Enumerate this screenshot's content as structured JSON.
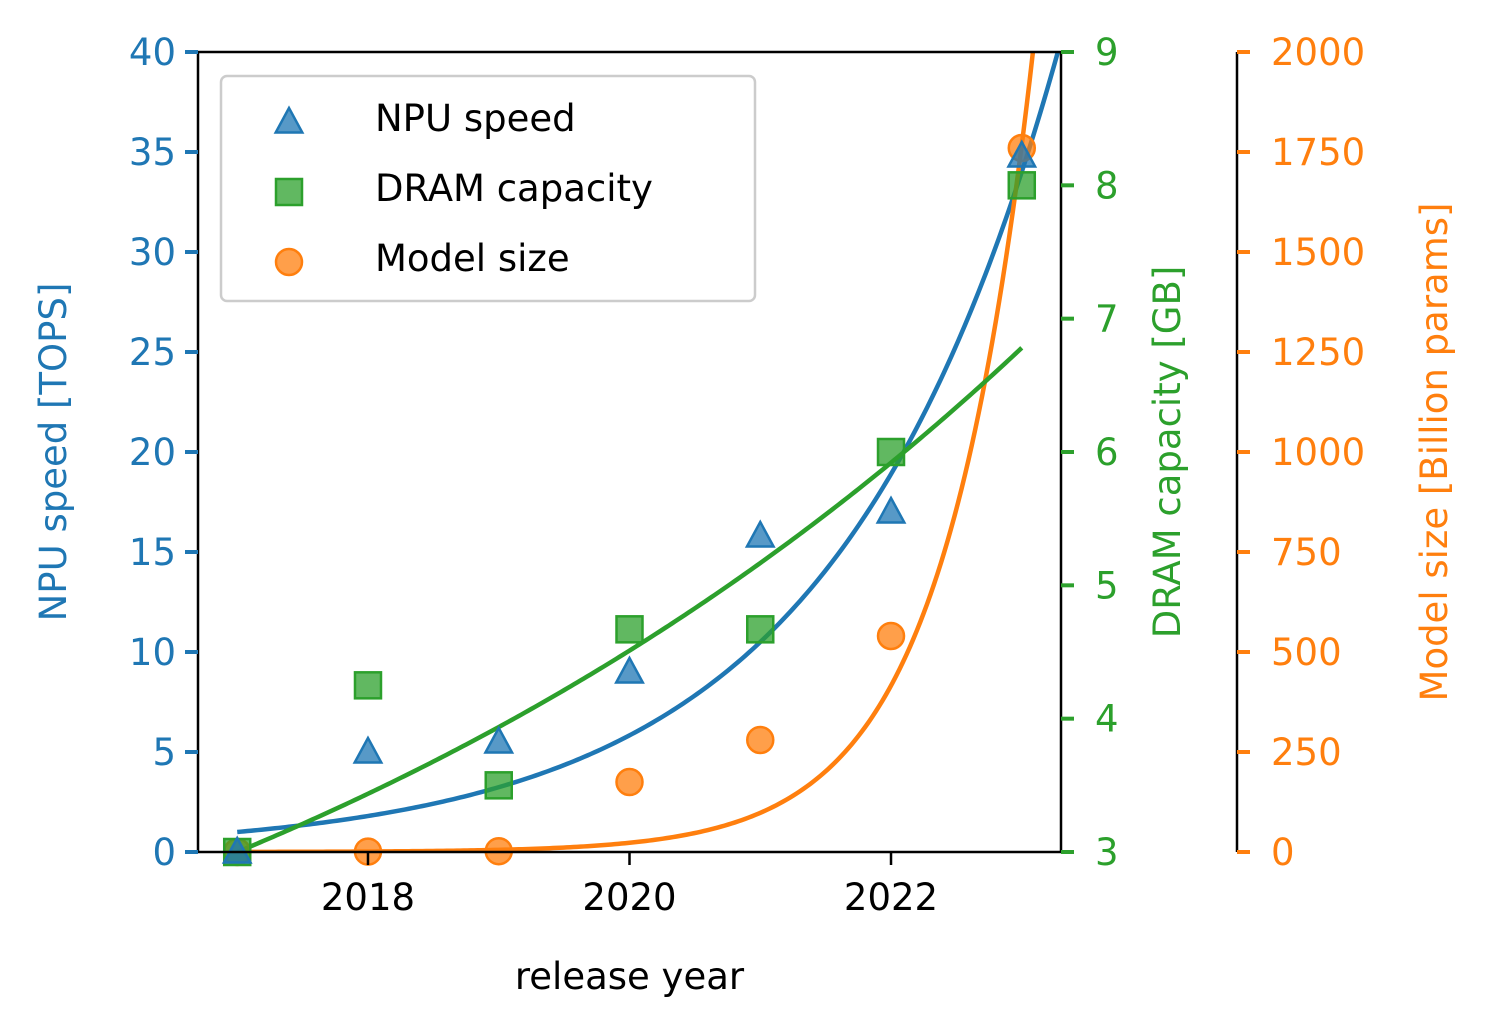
{
  "colors": {
    "npu": "#1f77b4",
    "dram": "#2ca02c",
    "model": "#ff7f0e",
    "axis": "#000000",
    "legend_border": "#cccccc"
  },
  "chart_data": {
    "type": "scatter",
    "title": "",
    "xlabel": "release year",
    "xlim": [
      2016.7,
      2023.3
    ],
    "xticks": [
      2018,
      2020,
      2022
    ],
    "x": [
      2017,
      2018,
      2019,
      2020,
      2021,
      2022,
      2023
    ],
    "series": [
      {
        "key": "npu",
        "name": "NPU speed",
        "marker": "triangle",
        "axis": "left",
        "ylabel": "NPU speed [TOPS]",
        "ylim": [
          0,
          40
        ],
        "yticks": [
          0,
          5,
          10,
          15,
          20,
          25,
          30,
          35,
          40
        ],
        "values": [
          0,
          5,
          5.5,
          9,
          15.8,
          17,
          34.8
        ],
        "fit": {
          "kind": "exponential",
          "a": 1.0,
          "r": 1.8,
          "x0": 2017
        }
      },
      {
        "key": "dram",
        "name": "DRAM capacity",
        "marker": "square",
        "axis": "right",
        "ylabel": "DRAM capacity [GB]",
        "ylim": [
          3,
          9
        ],
        "yticks": [
          3,
          4,
          5,
          6,
          7,
          8,
          9
        ],
        "values": [
          3,
          4.25,
          3.5,
          4.67,
          4.67,
          6,
          8
        ],
        "fit": {
          "kind": "exponential",
          "a": 3.0,
          "r": 1.1456,
          "x0": 2017,
          "x_end": 2023
        }
      },
      {
        "key": "model",
        "name": "Model size",
        "marker": "circle",
        "axis": "far-right",
        "ylabel": "Model size [Billion params]",
        "ylim": [
          0,
          2000
        ],
        "yticks": [
          0,
          250,
          500,
          750,
          1000,
          1250,
          1500,
          1750,
          2000
        ],
        "values": [
          0,
          1,
          2,
          175,
          280,
          540,
          1760
        ],
        "fit": {
          "kind": "exponential",
          "a": 0.3,
          "r": 4.25,
          "x0": 2017
        }
      }
    ],
    "legend": "top-left",
    "grid": false
  }
}
